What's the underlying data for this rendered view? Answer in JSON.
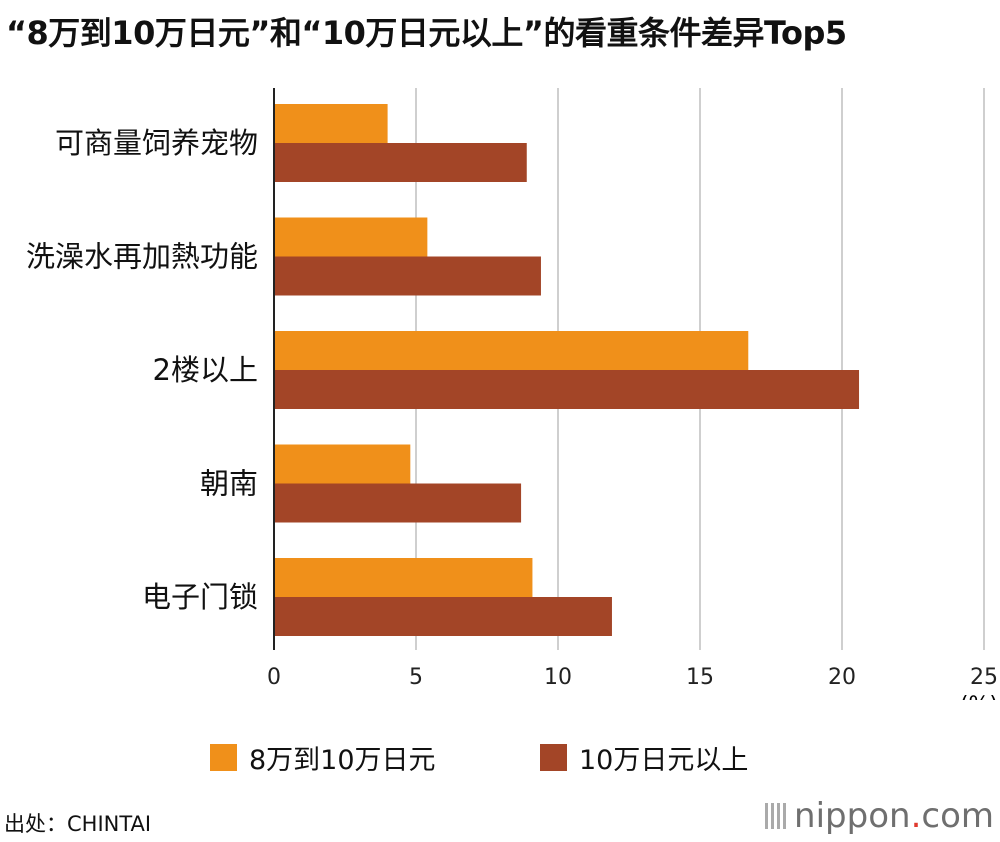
{
  "chart_data": {
    "type": "bar",
    "orientation": "horizontal",
    "title": "“8万到10万日元”和“10万日元以上”的看重条件差异Top5",
    "categories": [
      "可商量饲养宠物",
      "洗澡水再加熱功能",
      "2楼以上",
      "朝南",
      "电子门锁"
    ],
    "series": [
      {
        "name": "8万到10万日元",
        "color": "#F0901A",
        "values": [
          4.0,
          5.4,
          16.7,
          4.8,
          9.1
        ]
      },
      {
        "name": "10万日元以上",
        "color": "#A34527",
        "values": [
          8.9,
          9.4,
          20.6,
          8.7,
          11.9
        ]
      }
    ],
    "x_ticks": [
      "0",
      "5",
      "10",
      "15",
      "20",
      "25"
    ],
    "xlim": [
      0,
      25
    ],
    "x_unit": "(%)",
    "grid": true
  },
  "footer": {
    "source": "出处：CHINTAI",
    "logo_main": "nippon",
    "logo_dot": ".",
    "logo_suffix": "com"
  }
}
